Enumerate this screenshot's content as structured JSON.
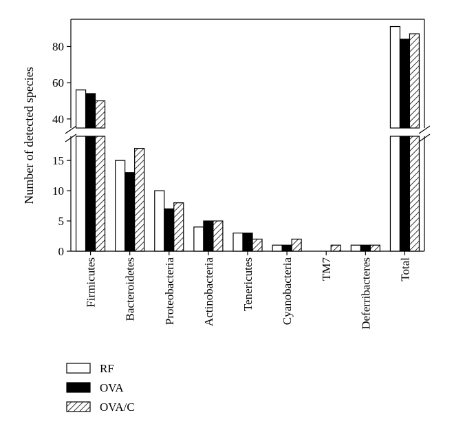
{
  "chart_data": {
    "type": "bar",
    "categories": [
      "Firmicutes",
      "Bacteroidetes",
      "Proteobacteria",
      "Actinobacteria",
      "Tenericutes",
      "Cyanobacteria",
      "TM7",
      "Deferribacteres",
      "Total"
    ],
    "series": [
      {
        "name": "RF",
        "fill": "white",
        "values": [
          56,
          15,
          10,
          4,
          3,
          1,
          0,
          1,
          91
        ]
      },
      {
        "name": "OVA",
        "fill": "black",
        "values": [
          54,
          13,
          7,
          5,
          3,
          1,
          0,
          1,
          84
        ]
      },
      {
        "name": "OVA/C",
        "fill": "hatch",
        "values": [
          50,
          17,
          8,
          5,
          2,
          2,
          1,
          1,
          87
        ]
      }
    ],
    "xlabel": "",
    "ylabel": "Number of detected species",
    "axis_break": true,
    "lower_segment": {
      "ylim": [
        0,
        19
      ],
      "ticks": [
        0,
        5,
        10,
        15
      ]
    },
    "upper_segment": {
      "ylim": [
        35,
        95
      ],
      "ticks": [
        40,
        60,
        80
      ]
    },
    "legend_position": "bottom-left",
    "grid": false,
    "colors": {
      "bar_stroke": "#000000",
      "dark_fill": "#000000",
      "light_fill": "#ffffff"
    }
  }
}
